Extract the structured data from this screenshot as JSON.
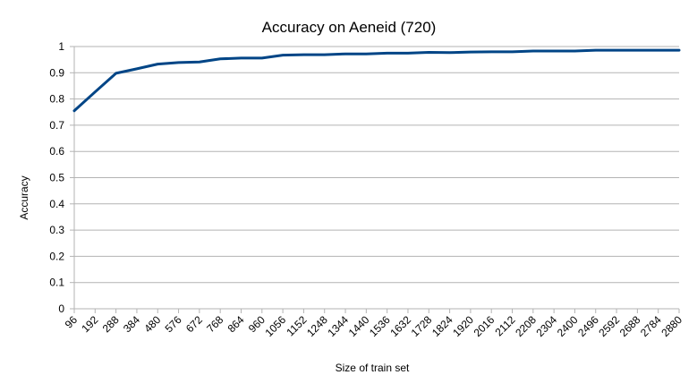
{
  "chart_data": {
    "type": "line",
    "title": "Accuracy on Aeneid (720)",
    "xlabel": "Size of train set",
    "ylabel": "Accuracy",
    "ylim": [
      0,
      1
    ],
    "y_ticks": [
      "0",
      "0.1",
      "0.2",
      "0.3",
      "0.4",
      "0.5",
      "0.6",
      "0.7",
      "0.8",
      "0.9",
      "1"
    ],
    "categories": [
      "96",
      "192",
      "288",
      "384",
      "480",
      "576",
      "672",
      "768",
      "864",
      "960",
      "1056",
      "1152",
      "1248",
      "1344",
      "1440",
      "1536",
      "1632",
      "1728",
      "1824",
      "1920",
      "2016",
      "2112",
      "2208",
      "2304",
      "2400",
      "2496",
      "2592",
      "2688",
      "2784",
      "2880"
    ],
    "series": [
      {
        "color": "#004586",
        "values": [
          0.755,
          0.827,
          0.898,
          0.915,
          0.933,
          0.939,
          0.941,
          0.953,
          0.956,
          0.956,
          0.967,
          0.969,
          0.969,
          0.972,
          0.972,
          0.975,
          0.975,
          0.978,
          0.977,
          0.979,
          0.98,
          0.98,
          0.983,
          0.983,
          0.983,
          0.986,
          0.986,
          0.986,
          0.986,
          0.986
        ]
      }
    ],
    "grid": "horizontal",
    "legend": "none"
  }
}
